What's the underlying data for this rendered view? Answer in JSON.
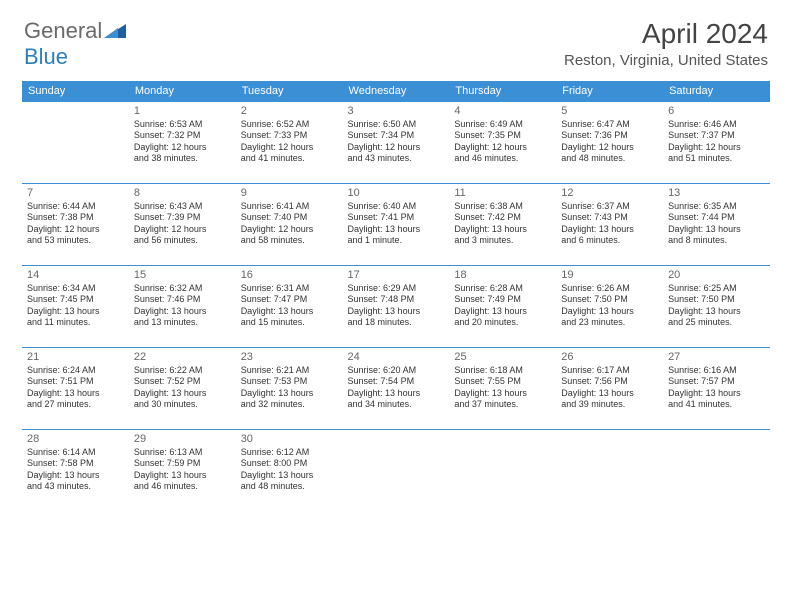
{
  "brand": {
    "part1": "General",
    "part2": "Blue"
  },
  "title": "April 2024",
  "location": "Reston, Virginia, United States",
  "colors": {
    "header_bg": "#3b8fd4",
    "header_text": "#ffffff",
    "border": "#3b8fd4",
    "body_text": "#333333",
    "title_text": "#444444",
    "brand_gray": "#6a6a6a",
    "brand_blue": "#2c7fb8"
  },
  "weekdays": [
    "Sunday",
    "Monday",
    "Tuesday",
    "Wednesday",
    "Thursday",
    "Friday",
    "Saturday"
  ],
  "weeks": [
    [
      null,
      {
        "n": "1",
        "sr": "Sunrise: 6:53 AM",
        "ss": "Sunset: 7:32 PM",
        "d1": "Daylight: 12 hours",
        "d2": "and 38 minutes."
      },
      {
        "n": "2",
        "sr": "Sunrise: 6:52 AM",
        "ss": "Sunset: 7:33 PM",
        "d1": "Daylight: 12 hours",
        "d2": "and 41 minutes."
      },
      {
        "n": "3",
        "sr": "Sunrise: 6:50 AM",
        "ss": "Sunset: 7:34 PM",
        "d1": "Daylight: 12 hours",
        "d2": "and 43 minutes."
      },
      {
        "n": "4",
        "sr": "Sunrise: 6:49 AM",
        "ss": "Sunset: 7:35 PM",
        "d1": "Daylight: 12 hours",
        "d2": "and 46 minutes."
      },
      {
        "n": "5",
        "sr": "Sunrise: 6:47 AM",
        "ss": "Sunset: 7:36 PM",
        "d1": "Daylight: 12 hours",
        "d2": "and 48 minutes."
      },
      {
        "n": "6",
        "sr": "Sunrise: 6:46 AM",
        "ss": "Sunset: 7:37 PM",
        "d1": "Daylight: 12 hours",
        "d2": "and 51 minutes."
      }
    ],
    [
      {
        "n": "7",
        "sr": "Sunrise: 6:44 AM",
        "ss": "Sunset: 7:38 PM",
        "d1": "Daylight: 12 hours",
        "d2": "and 53 minutes."
      },
      {
        "n": "8",
        "sr": "Sunrise: 6:43 AM",
        "ss": "Sunset: 7:39 PM",
        "d1": "Daylight: 12 hours",
        "d2": "and 56 minutes."
      },
      {
        "n": "9",
        "sr": "Sunrise: 6:41 AM",
        "ss": "Sunset: 7:40 PM",
        "d1": "Daylight: 12 hours",
        "d2": "and 58 minutes."
      },
      {
        "n": "10",
        "sr": "Sunrise: 6:40 AM",
        "ss": "Sunset: 7:41 PM",
        "d1": "Daylight: 13 hours",
        "d2": "and 1 minute."
      },
      {
        "n": "11",
        "sr": "Sunrise: 6:38 AM",
        "ss": "Sunset: 7:42 PM",
        "d1": "Daylight: 13 hours",
        "d2": "and 3 minutes."
      },
      {
        "n": "12",
        "sr": "Sunrise: 6:37 AM",
        "ss": "Sunset: 7:43 PM",
        "d1": "Daylight: 13 hours",
        "d2": "and 6 minutes."
      },
      {
        "n": "13",
        "sr": "Sunrise: 6:35 AM",
        "ss": "Sunset: 7:44 PM",
        "d1": "Daylight: 13 hours",
        "d2": "and 8 minutes."
      }
    ],
    [
      {
        "n": "14",
        "sr": "Sunrise: 6:34 AM",
        "ss": "Sunset: 7:45 PM",
        "d1": "Daylight: 13 hours",
        "d2": "and 11 minutes."
      },
      {
        "n": "15",
        "sr": "Sunrise: 6:32 AM",
        "ss": "Sunset: 7:46 PM",
        "d1": "Daylight: 13 hours",
        "d2": "and 13 minutes."
      },
      {
        "n": "16",
        "sr": "Sunrise: 6:31 AM",
        "ss": "Sunset: 7:47 PM",
        "d1": "Daylight: 13 hours",
        "d2": "and 15 minutes."
      },
      {
        "n": "17",
        "sr": "Sunrise: 6:29 AM",
        "ss": "Sunset: 7:48 PM",
        "d1": "Daylight: 13 hours",
        "d2": "and 18 minutes."
      },
      {
        "n": "18",
        "sr": "Sunrise: 6:28 AM",
        "ss": "Sunset: 7:49 PM",
        "d1": "Daylight: 13 hours",
        "d2": "and 20 minutes."
      },
      {
        "n": "19",
        "sr": "Sunrise: 6:26 AM",
        "ss": "Sunset: 7:50 PM",
        "d1": "Daylight: 13 hours",
        "d2": "and 23 minutes."
      },
      {
        "n": "20",
        "sr": "Sunrise: 6:25 AM",
        "ss": "Sunset: 7:50 PM",
        "d1": "Daylight: 13 hours",
        "d2": "and 25 minutes."
      }
    ],
    [
      {
        "n": "21",
        "sr": "Sunrise: 6:24 AM",
        "ss": "Sunset: 7:51 PM",
        "d1": "Daylight: 13 hours",
        "d2": "and 27 minutes."
      },
      {
        "n": "22",
        "sr": "Sunrise: 6:22 AM",
        "ss": "Sunset: 7:52 PM",
        "d1": "Daylight: 13 hours",
        "d2": "and 30 minutes."
      },
      {
        "n": "23",
        "sr": "Sunrise: 6:21 AM",
        "ss": "Sunset: 7:53 PM",
        "d1": "Daylight: 13 hours",
        "d2": "and 32 minutes."
      },
      {
        "n": "24",
        "sr": "Sunrise: 6:20 AM",
        "ss": "Sunset: 7:54 PM",
        "d1": "Daylight: 13 hours",
        "d2": "and 34 minutes."
      },
      {
        "n": "25",
        "sr": "Sunrise: 6:18 AM",
        "ss": "Sunset: 7:55 PM",
        "d1": "Daylight: 13 hours",
        "d2": "and 37 minutes."
      },
      {
        "n": "26",
        "sr": "Sunrise: 6:17 AM",
        "ss": "Sunset: 7:56 PM",
        "d1": "Daylight: 13 hours",
        "d2": "and 39 minutes."
      },
      {
        "n": "27",
        "sr": "Sunrise: 6:16 AM",
        "ss": "Sunset: 7:57 PM",
        "d1": "Daylight: 13 hours",
        "d2": "and 41 minutes."
      }
    ],
    [
      {
        "n": "28",
        "sr": "Sunrise: 6:14 AM",
        "ss": "Sunset: 7:58 PM",
        "d1": "Daylight: 13 hours",
        "d2": "and 43 minutes."
      },
      {
        "n": "29",
        "sr": "Sunrise: 6:13 AM",
        "ss": "Sunset: 7:59 PM",
        "d1": "Daylight: 13 hours",
        "d2": "and 46 minutes."
      },
      {
        "n": "30",
        "sr": "Sunrise: 6:12 AM",
        "ss": "Sunset: 8:00 PM",
        "d1": "Daylight: 13 hours",
        "d2": "and 48 minutes."
      },
      null,
      null,
      null,
      null
    ]
  ]
}
